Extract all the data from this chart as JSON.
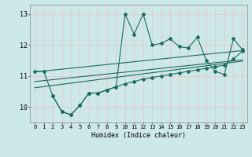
{
  "xlabel": "Humidex (Indice chaleur)",
  "bg_color": "#cce8e8",
  "line_color": "#1a6b60",
  "grid_color": "#b0d8d8",
  "xlim": [
    -0.5,
    23.5
  ],
  "ylim": [
    9.5,
    13.3
  ],
  "yticks": [
    10,
    11,
    12,
    13
  ],
  "xticks": [
    0,
    1,
    2,
    3,
    4,
    5,
    6,
    7,
    8,
    9,
    10,
    11,
    12,
    13,
    14,
    15,
    16,
    17,
    18,
    19,
    20,
    21,
    22,
    23
  ],
  "line1_x": [
    0,
    1,
    2,
    3,
    4,
    5,
    6,
    7,
    8,
    9,
    10,
    11,
    12,
    13,
    14,
    15,
    16,
    17,
    18,
    19,
    20,
    21,
    22,
    23
  ],
  "line1_y": [
    11.15,
    11.15,
    10.35,
    9.85,
    9.75,
    10.05,
    10.45,
    10.45,
    10.55,
    10.65,
    13.0,
    12.35,
    13.0,
    12.0,
    12.05,
    12.2,
    11.95,
    11.9,
    12.25,
    11.5,
    11.15,
    11.05,
    12.2,
    11.85
  ],
  "line2_x": [
    2,
    3,
    4,
    5,
    6,
    7,
    8,
    9,
    10,
    11,
    12,
    13,
    14,
    15,
    16,
    17,
    18,
    19,
    20,
    21,
    22,
    23
  ],
  "line2_y": [
    10.35,
    9.85,
    9.75,
    10.05,
    10.45,
    10.45,
    10.55,
    10.65,
    10.75,
    10.82,
    10.9,
    10.95,
    11.0,
    11.05,
    11.1,
    11.15,
    11.2,
    11.25,
    11.3,
    11.35,
    11.55,
    11.8
  ],
  "line3_x": [
    0,
    23
  ],
  "line3_y": [
    10.62,
    11.48
  ],
  "line4_x": [
    0,
    23
  ],
  "line4_y": [
    10.82,
    11.52
  ],
  "line5_x": [
    0,
    23
  ],
  "line5_y": [
    11.13,
    11.82
  ]
}
